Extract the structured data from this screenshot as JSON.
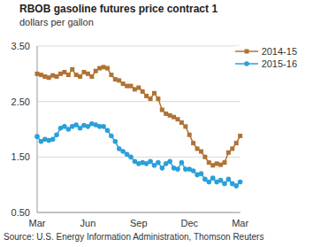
{
  "chart_data": {
    "type": "line",
    "title": "RBOB gasoline futures price contract 1",
    "subtitle": "dollars per gallon",
    "source": "Source: U.S. Energy Information Administration, Thomson Reuters",
    "categories": [
      "Mar",
      null,
      null,
      null,
      null,
      null,
      null,
      null,
      null,
      null,
      null,
      null,
      null,
      "Jun",
      null,
      null,
      null,
      null,
      null,
      null,
      null,
      null,
      null,
      null,
      null,
      null,
      "Sep",
      null,
      null,
      null,
      null,
      null,
      null,
      null,
      null,
      null,
      null,
      null,
      null,
      "Dec",
      null,
      null,
      null,
      null,
      null,
      null,
      null,
      null,
      null,
      null,
      null,
      null,
      "Mar"
    ],
    "series": [
      {
        "name": "2014-15",
        "color": "#b07333",
        "marker": "square",
        "values": [
          3.0,
          2.98,
          2.95,
          2.93,
          2.97,
          2.95,
          3.0,
          3.03,
          2.98,
          3.08,
          2.98,
          2.95,
          3.03,
          3.0,
          2.95,
          3.05,
          3.1,
          3.12,
          3.1,
          2.98,
          2.9,
          2.88,
          2.82,
          2.78,
          2.78,
          2.72,
          2.75,
          2.68,
          2.6,
          2.55,
          2.65,
          2.55,
          2.35,
          2.28,
          2.25,
          2.22,
          2.18,
          2.12,
          2.05,
          1.9,
          1.75,
          1.65,
          1.6,
          1.5,
          1.4,
          1.35,
          1.38,
          1.36,
          1.4,
          1.58,
          1.65,
          1.75,
          1.88
        ]
      },
      {
        "name": "2015-16",
        "color": "#2b9fd8",
        "marker": "circle",
        "values": [
          1.87,
          1.78,
          1.82,
          1.8,
          1.82,
          1.9,
          2.02,
          2.05,
          2.0,
          2.05,
          2.08,
          2.02,
          2.07,
          2.05,
          2.1,
          2.08,
          2.05,
          2.05,
          1.98,
          1.88,
          1.78,
          1.65,
          1.6,
          1.55,
          1.5,
          1.42,
          1.38,
          1.4,
          1.38,
          1.42,
          1.35,
          1.4,
          1.3,
          1.38,
          1.42,
          1.3,
          1.28,
          1.4,
          1.28,
          1.28,
          1.25,
          1.18,
          1.2,
          1.1,
          1.05,
          1.12,
          1.05,
          1.08,
          1.02,
          1.1,
          1.02,
          0.98,
          1.05
        ]
      }
    ],
    "ylim": [
      0.5,
      3.5
    ],
    "yticks": [
      {
        "value": 0.5,
        "label": "0.50"
      },
      {
        "value": 1.5,
        "label": "1.50"
      },
      {
        "value": 2.5,
        "label": "2.50"
      },
      {
        "value": 3.5,
        "label": "3.50"
      }
    ],
    "grid": true,
    "legend": "top-right"
  }
}
